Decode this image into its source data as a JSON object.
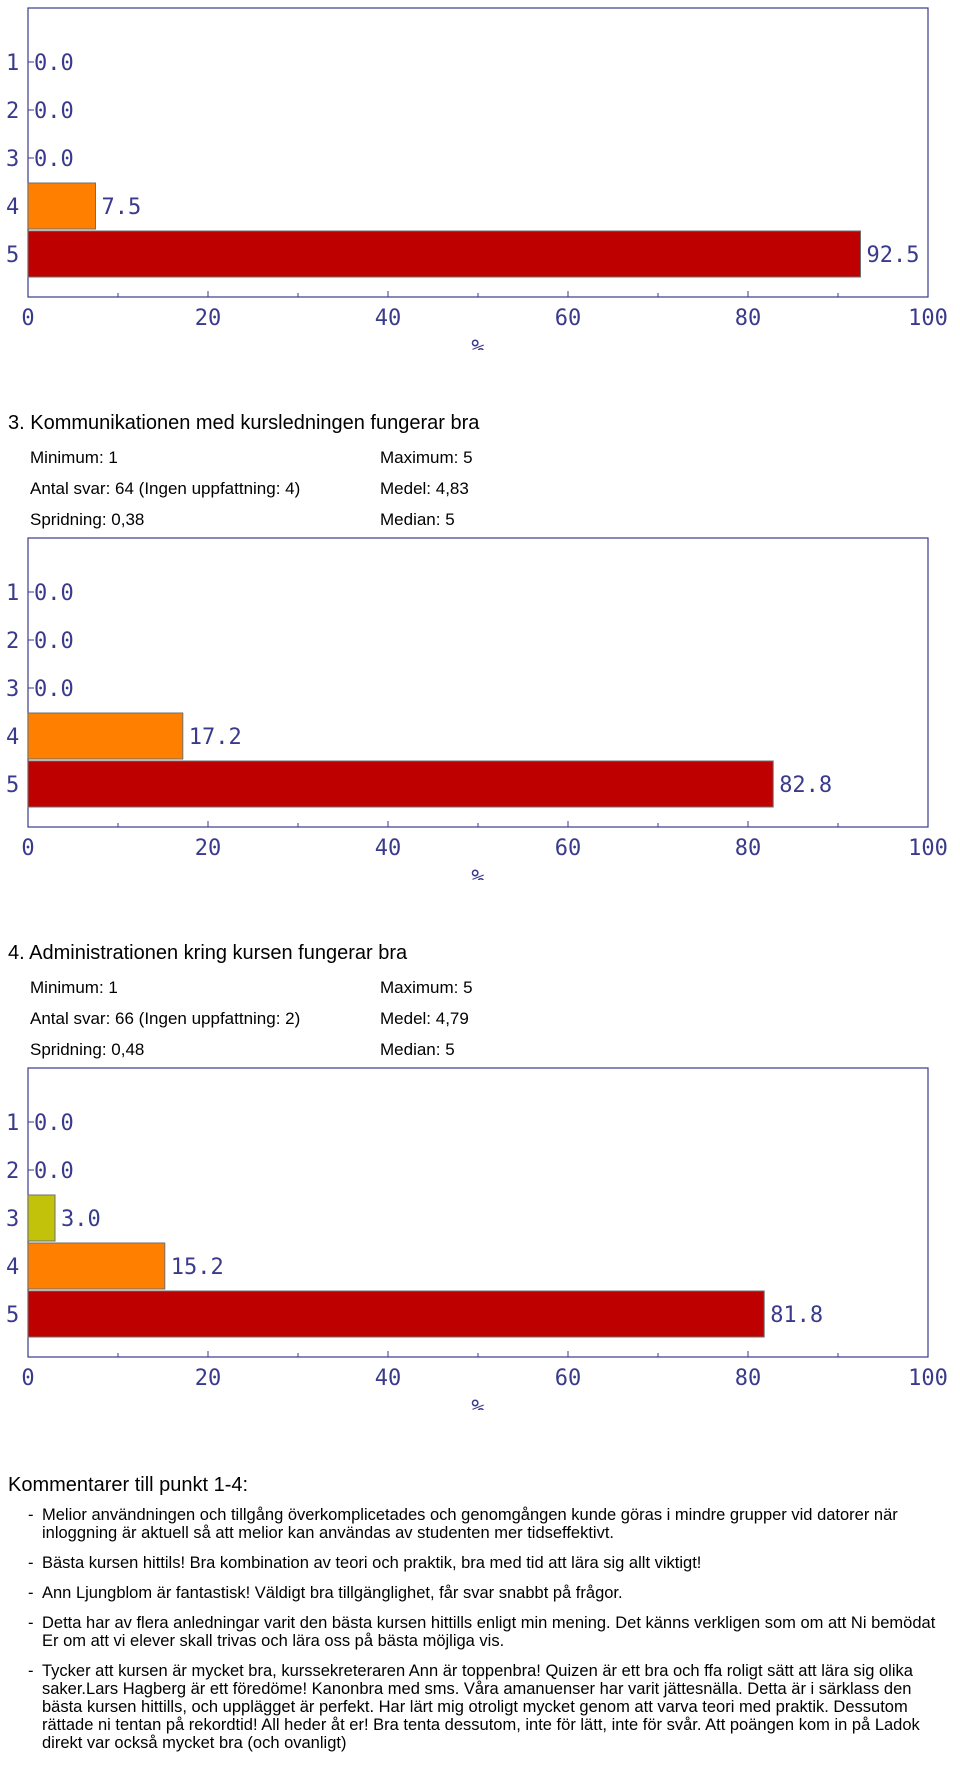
{
  "chart_data": [
    {
      "type": "bar",
      "categories": [
        "1",
        "2",
        "3",
        "4",
        "5"
      ],
      "values": [
        0.0,
        0.0,
        0.0,
        7.5,
        92.5
      ],
      "value_labels": [
        "0.0",
        "0.0",
        "0.0",
        "7.5",
        "92.5"
      ],
      "bar_colors": [
        "#c2c20b",
        "#c2c20b",
        "#c2c20b",
        "#ff8000",
        "#bf0000"
      ],
      "xlabel": "%",
      "xlim": [
        0,
        100
      ],
      "xticks": [
        "0",
        "20",
        "40",
        "60",
        "80",
        "100"
      ],
      "orientation": "horizontal"
    },
    {
      "type": "bar",
      "categories": [
        "1",
        "2",
        "3",
        "4",
        "5"
      ],
      "values": [
        0.0,
        0.0,
        0.0,
        17.2,
        82.8
      ],
      "value_labels": [
        "0.0",
        "0.0",
        "0.0",
        "17.2",
        "82.8"
      ],
      "bar_colors": [
        "#c2c20b",
        "#c2c20b",
        "#c2c20b",
        "#ff8000",
        "#bf0000"
      ],
      "xlabel": "%",
      "xlim": [
        0,
        100
      ],
      "xticks": [
        "0",
        "20",
        "40",
        "60",
        "80",
        "100"
      ],
      "orientation": "horizontal"
    },
    {
      "type": "bar",
      "categories": [
        "1",
        "2",
        "3",
        "4",
        "5"
      ],
      "values": [
        0.0,
        0.0,
        3.0,
        15.2,
        81.8
      ],
      "value_labels": [
        "0.0",
        "0.0",
        "3.0",
        "15.2",
        "81.8"
      ],
      "bar_colors": [
        "#c2c20b",
        "#c2c20b",
        "#c2c20b",
        "#ff8000",
        "#bf0000"
      ],
      "xlabel": "%",
      "xlim": [
        0,
        100
      ],
      "xticks": [
        "0",
        "20",
        "40",
        "60",
        "80",
        "100"
      ],
      "orientation": "horizontal"
    }
  ],
  "sections": [
    {
      "title": "3. Kommunikationen med kursledningen fungerar bra",
      "minimum": "Minimum: 1",
      "maximum": "Maximum: 5",
      "antal": "Antal svar: 64 (Ingen uppfattning: 4)",
      "medel": "Medel: 4,83",
      "spridning": "Spridning: 0,38",
      "median": "Median: 5"
    },
    {
      "title": "4. Administrationen kring kursen fungerar bra",
      "minimum": "Minimum: 1",
      "maximum": "Maximum: 5",
      "antal": "Antal svar: 66 (Ingen uppfattning: 2)",
      "medel": "Medel: 4,79",
      "spridning": "Spridning: 0,48",
      "median": "Median: 5"
    }
  ],
  "comments": {
    "title": "Kommentarer till punkt 1-4:",
    "dash": "-",
    "items": [
      "Melior användningen och tillgång överkomplicetades och genomgången kunde göras i mindre grupper vid datorer när inloggning är aktuell så att melior kan användas av studenten mer tidseffektivt.",
      "Bästa kursen hittils! Bra kombination av teori och praktik, bra med tid att lära sig allt viktigt!",
      "Ann Ljungblom är fantastisk! Väldigt bra tillgänglighet, får svar snabbt på frågor.",
      "Detta har av flera anledningar varit den bästa kursen hittills enligt min mening. Det känns verkligen som om att Ni bemödat Er om att vi elever skall trivas och lära oss på bästa möjliga vis.",
      "Tycker att kursen är mycket bra, kurssekreteraren Ann är toppenbra! Quizen är ett bra och ffa roligt sätt att lära sig olika saker.Lars Hagberg är ett föredöme! Kanonbra med sms. Våra amanuenser har varit jättesnälla.  Detta är i särklass den bästa kursen hittills, och upplägget är perfekt. Har lärt mig otroligt mycket genom att varva teori med praktik. Dessutom rättade ni tentan på rekordtid! All heder åt er! Bra tenta dessutom, inte för lätt, inte för svår. Att poängen kom in på Ladok direkt var också mycket bra (och ovanligt)"
    ]
  }
}
